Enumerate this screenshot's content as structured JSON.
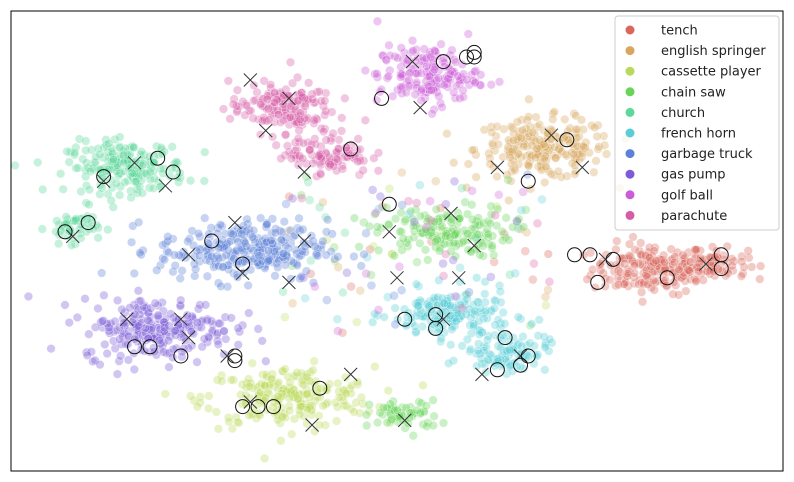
{
  "chart_data": {
    "type": "scatter",
    "title": "",
    "xlabel": "",
    "ylabel": "",
    "xlim": [
      0,
      100
    ],
    "ylim": [
      0,
      100
    ],
    "grid": false,
    "legend_placement": "top-right",
    "marker_legend": {
      "x": "cross marker",
      "o": "open circle marker"
    },
    "series": [
      {
        "name": "tench",
        "color": "#d9675b",
        "clusters": [
          {
            "cx": 83,
            "cy": 44,
            "rx": 7,
            "ry": 5,
            "n": 180
          },
          {
            "cx": 91,
            "cy": 45,
            "rx": 4,
            "ry": 3,
            "n": 70
          }
        ],
        "crosses": [
          [
            77,
            46
          ],
          [
            90,
            45
          ]
        ],
        "circles": [
          [
            73,
            47
          ],
          [
            75,
            47
          ],
          [
            78,
            46
          ],
          [
            76,
            41
          ],
          [
            85,
            42
          ],
          [
            92,
            47
          ],
          [
            92,
            44
          ]
        ]
      },
      {
        "name": "english springer",
        "color": "#d8a65d",
        "clusters": [
          {
            "cx": 69,
            "cy": 70,
            "rx": 8,
            "ry": 6,
            "n": 220
          }
        ],
        "crosses": [
          [
            70,
            73
          ],
          [
            63,
            66
          ],
          [
            74,
            66
          ]
        ],
        "circles": [
          [
            72,
            72
          ],
          [
            67,
            63
          ]
        ]
      },
      {
        "name": "cassette player",
        "color": "#b9d95a",
        "clusters": [
          {
            "cx": 36,
            "cy": 16,
            "rx": 10,
            "ry": 6,
            "n": 220
          }
        ],
        "crosses": [
          [
            31,
            15
          ],
          [
            39,
            10
          ],
          [
            44,
            21
          ],
          [
            23,
            29
          ]
        ],
        "circles": [
          [
            30,
            14
          ],
          [
            32,
            14
          ],
          [
            34,
            14
          ],
          [
            40,
            18
          ],
          [
            29,
            25
          ]
        ]
      },
      {
        "name": "chain saw",
        "color": "#68d45a",
        "clusters": [
          {
            "cx": 56,
            "cy": 52,
            "rx": 8,
            "ry": 5,
            "n": 160
          },
          {
            "cx": 51,
            "cy": 12,
            "rx": 4,
            "ry": 3,
            "n": 60
          }
        ],
        "crosses": [
          [
            49,
            52
          ],
          [
            57,
            56
          ],
          [
            60,
            49
          ],
          [
            50,
            42
          ],
          [
            51,
            11
          ]
        ],
        "circles": [
          [
            49,
            58
          ]
        ]
      },
      {
        "name": "church",
        "color": "#5dd89a",
        "clusters": [
          {
            "cx": 15,
            "cy": 66,
            "rx": 7,
            "ry": 5,
            "n": 200
          },
          {
            "cx": 8,
            "cy": 53,
            "rx": 3,
            "ry": 3,
            "n": 50
          }
        ],
        "crosses": [
          [
            16,
            67
          ],
          [
            20,
            62
          ],
          [
            12,
            63
          ],
          [
            8,
            51
          ]
        ],
        "circles": [
          [
            19,
            68
          ],
          [
            21,
            65
          ],
          [
            12,
            64
          ],
          [
            10,
            54
          ],
          [
            7,
            52
          ]
        ]
      },
      {
        "name": "french horn",
        "color": "#5acdd8",
        "clusters": [
          {
            "cx": 57,
            "cy": 34,
            "rx": 7,
            "ry": 5,
            "n": 170
          },
          {
            "cx": 64,
            "cy": 26,
            "rx": 5,
            "ry": 4,
            "n": 100
          }
        ],
        "crosses": [
          [
            58,
            42
          ],
          [
            56,
            33
          ],
          [
            66,
            25
          ],
          [
            61,
            21
          ]
        ],
        "circles": [
          [
            51,
            33
          ],
          [
            55,
            34
          ],
          [
            55,
            31
          ],
          [
            64,
            29
          ],
          [
            63,
            22
          ],
          [
            67,
            25
          ],
          [
            66,
            23
          ]
        ]
      },
      {
        "name": "garbage truck",
        "color": "#5b82d8",
        "clusters": [
          {
            "cx": 30,
            "cy": 48,
            "rx": 10,
            "ry": 6,
            "n": 280
          }
        ],
        "crosses": [
          [
            29,
            54
          ],
          [
            23,
            47
          ],
          [
            38,
            50
          ],
          [
            36,
            41
          ],
          [
            30,
            43
          ]
        ],
        "circles": [
          [
            26,
            50
          ],
          [
            30,
            45
          ]
        ]
      },
      {
        "name": "gas pump",
        "color": "#7b5bd8",
        "clusters": [
          {
            "cx": 19,
            "cy": 31,
            "rx": 9,
            "ry": 6,
            "n": 240
          }
        ],
        "crosses": [
          [
            15,
            33
          ],
          [
            22,
            33
          ],
          [
            28,
            25
          ]
        ],
        "circles": [
          [
            16,
            27
          ],
          [
            18,
            27
          ],
          [
            22,
            25
          ],
          [
            29,
            24
          ]
        ]
      },
      {
        "name": "golf ball",
        "color": "#cc5bd8",
        "clusters": [
          {
            "cx": 54,
            "cy": 86,
            "rx": 6,
            "ry": 6,
            "n": 170
          }
        ],
        "crosses": [
          [
            52,
            89
          ],
          [
            53,
            79
          ]
        ],
        "circles": [
          [
            56,
            89
          ],
          [
            59,
            90
          ],
          [
            60,
            90
          ],
          [
            60,
            91
          ],
          [
            48,
            81
          ]
        ]
      },
      {
        "name": "parachute",
        "color": "#d85ba6",
        "clusters": [
          {
            "cx": 35,
            "cy": 79,
            "rx": 6,
            "ry": 5,
            "n": 160
          },
          {
            "cx": 41,
            "cy": 69,
            "rx": 5,
            "ry": 4,
            "n": 100
          }
        ],
        "crosses": [
          [
            31,
            85
          ],
          [
            36,
            81
          ],
          [
            33,
            74
          ],
          [
            38,
            65
          ]
        ],
        "circles": [
          [
            44,
            70
          ]
        ]
      }
    ]
  }
}
